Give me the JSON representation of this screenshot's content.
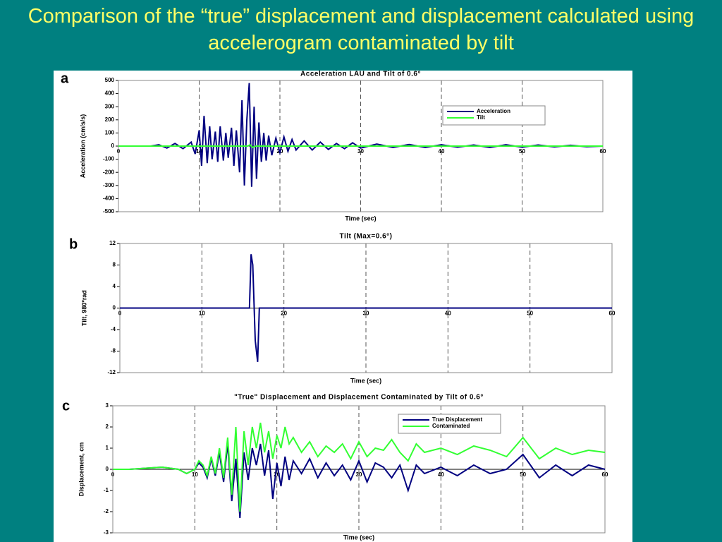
{
  "title": "Comparison of the “true” displacement and displacement calculated using accelerogram contaminated by tilt",
  "chart_data": [
    {
      "type": "line",
      "panel_label": "a",
      "title": "Acceleration  LAU  and  Tilt  of  0.6°",
      "x_label": "Time  (sec)",
      "y_label": "Acceleration (cm/s/s)",
      "xlim": [
        0,
        60
      ],
      "xticks": [
        0,
        10,
        20,
        30,
        40,
        50,
        60
      ],
      "ylim": [
        -500,
        500
      ],
      "yticks": [
        -500,
        -400,
        -300,
        -200,
        -100,
        0,
        100,
        200,
        300,
        400,
        500
      ],
      "grid": "x",
      "legend": "upper right",
      "series": [
        {
          "name": "Acceleration",
          "color": "#000080",
          "x": [
            0,
            2,
            4,
            5,
            6,
            7,
            8,
            9,
            9.5,
            10,
            10.3,
            10.6,
            11,
            11.3,
            11.6,
            12,
            12.3,
            12.6,
            13,
            13.3,
            13.6,
            14,
            14.3,
            14.6,
            15,
            15.3,
            15.6,
            15.9,
            16.2,
            16.5,
            16.8,
            17.1,
            17.4,
            17.7,
            18,
            18.3,
            18.6,
            19,
            19.5,
            20,
            20.5,
            21,
            21.5,
            22,
            23,
            24,
            25,
            26,
            27,
            28,
            29,
            30,
            32,
            34,
            36,
            38,
            40,
            42,
            44,
            46,
            48,
            50,
            52,
            54,
            56,
            58,
            60
          ],
          "values": [
            0,
            0,
            0,
            10,
            -15,
            20,
            -20,
            30,
            -60,
            120,
            -150,
            230,
            -130,
            150,
            -100,
            110,
            -120,
            150,
            -110,
            100,
            -90,
            140,
            -150,
            120,
            -200,
            350,
            -300,
            200,
            480,
            -310,
            300,
            -250,
            180,
            -120,
            100,
            -110,
            80,
            -70,
            60,
            -50,
            70,
            -40,
            50,
            -30,
            40,
            -30,
            30,
            -25,
            20,
            -20,
            25,
            -15,
            15,
            -10,
            12,
            -10,
            10,
            -8,
            8,
            -10,
            10,
            -8,
            8,
            -6,
            6,
            -5,
            0
          ]
        },
        {
          "name": "Tilt",
          "color": "#33ff33",
          "x": [
            0,
            16,
            16.3,
            16.6,
            17,
            60
          ],
          "values": [
            0,
            0,
            10,
            -10,
            0,
            0
          ]
        }
      ]
    },
    {
      "type": "line",
      "panel_label": "b",
      "title": "Tilt  (Max=0.6°)",
      "x_label": "Time  (sec)",
      "y_label": "Tilt, 980*rad",
      "xlim": [
        0,
        60
      ],
      "xticks": [
        0,
        10,
        20,
        30,
        40,
        50,
        60
      ],
      "ylim": [
        -12,
        12
      ],
      "yticks": [
        -12,
        -8,
        -4,
        0,
        4,
        8,
        12
      ],
      "grid": "x",
      "series": [
        {
          "color": "#000080",
          "x": [
            0,
            15.8,
            16,
            16.2,
            16.5,
            16.8,
            17,
            17.2,
            60
          ],
          "values": [
            0,
            0,
            10,
            8,
            -6,
            -10,
            0,
            0,
            0
          ]
        }
      ]
    },
    {
      "type": "line",
      "panel_label": "c",
      "title": "\"True\"  Displacement  and  Displacement  Contaminated  by  Tilt  of  0.6°",
      "x_label": "Time  (sec)",
      "y_label": "Displacement, cm",
      "xlim": [
        0,
        60
      ],
      "xticks": [
        0,
        10,
        20,
        30,
        40,
        50,
        60
      ],
      "ylim": [
        -3,
        3
      ],
      "yticks": [
        -3,
        -2,
        -1,
        0,
        1,
        2,
        3
      ],
      "grid": "x",
      "legend": "upper right",
      "series": [
        {
          "name": "True  Displacement",
          "color": "#000080",
          "x": [
            0,
            2,
            4,
            6,
            8,
            9,
            10,
            10.5,
            11,
            11.5,
            12,
            12.5,
            13,
            13.5,
            14,
            14.5,
            15,
            15.5,
            16,
            16.5,
            17,
            17.5,
            18,
            18.5,
            19,
            19.5,
            20,
            20.5,
            21,
            21.5,
            22,
            23,
            24,
            25,
            26,
            27,
            28,
            29,
            30,
            31,
            32,
            33,
            34,
            35,
            36,
            37,
            38,
            40,
            42,
            44,
            46,
            48,
            50,
            52,
            54,
            56,
            58,
            60
          ],
          "values": [
            0,
            0,
            0.05,
            0.1,
            0,
            -0.2,
            0,
            0.3,
            0.1,
            -0.4,
            0.5,
            -0.3,
            0.8,
            -0.6,
            1.2,
            -1.5,
            0.5,
            -2.3,
            0.8,
            -0.5,
            1.0,
            0.2,
            1.2,
            -0.3,
            0.9,
            -1.4,
            0.3,
            -0.8,
            0.6,
            -0.5,
            0.4,
            -0.2,
            0.5,
            -0.4,
            0.3,
            -0.3,
            0.2,
            -0.5,
            0.4,
            -0.6,
            0.3,
            0.1,
            -0.4,
            0.2,
            -1.0,
            0.2,
            -0.2,
            0.1,
            -0.3,
            0.2,
            -0.2,
            0.0,
            0.7,
            -0.4,
            0.2,
            -0.3,
            0.2,
            0.0
          ]
        },
        {
          "name": "Contaminated",
          "color": "#33ff33",
          "x": [
            0,
            2,
            4,
            6,
            8,
            9,
            10,
            10.5,
            11,
            11.5,
            12,
            12.5,
            13,
            13.5,
            14,
            14.5,
            15,
            15.5,
            16,
            16.5,
            17,
            17.5,
            18,
            18.5,
            19,
            19.5,
            20,
            20.5,
            21,
            21.5,
            22,
            23,
            24,
            25,
            26,
            27,
            28,
            29,
            30,
            31,
            32,
            33,
            34,
            35,
            36,
            37,
            38,
            40,
            42,
            44,
            46,
            48,
            50,
            52,
            54,
            56,
            58,
            60
          ],
          "values": [
            0,
            0,
            0.05,
            0.1,
            0,
            -0.2,
            0,
            0.4,
            0.2,
            -0.3,
            0.6,
            -0.2,
            1.0,
            -0.4,
            1.5,
            -1.2,
            2.0,
            -2.0,
            1.8,
            0.2,
            2.0,
            1.0,
            2.2,
            0.8,
            1.8,
            0.5,
            1.6,
            1.0,
            2.0,
            1.2,
            1.5,
            0.8,
            1.3,
            0.6,
            1.1,
            0.8,
            1.2,
            0.5,
            1.3,
            0.6,
            1.0,
            0.9,
            1.4,
            0.8,
            0.4,
            1.2,
            0.8,
            1.0,
            0.7,
            1.1,
            0.9,
            0.6,
            1.5,
            0.5,
            1.0,
            0.7,
            0.9,
            0.8
          ]
        }
      ]
    }
  ]
}
